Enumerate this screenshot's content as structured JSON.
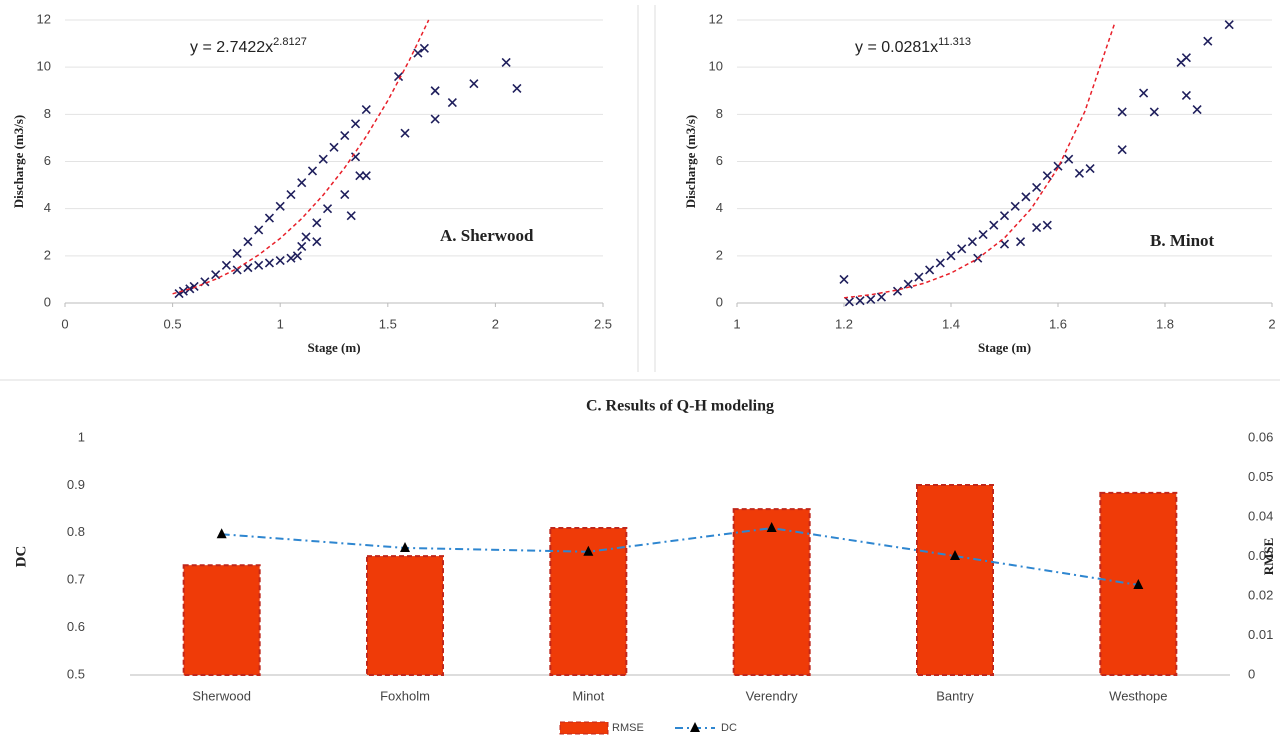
{
  "chart_data": [
    {
      "type": "scatter",
      "annotation": "A.  Sherwood",
      "equation": {
        "text": "y = 2.7422x",
        "exponent": "2.8127"
      },
      "xlabel": "Stage (m)",
      "ylabel": "Discharge (m3/s)",
      "xlim": [
        0,
        2.5
      ],
      "xticks": [
        0,
        0.5,
        1,
        1.5,
        2,
        2.5
      ],
      "ylim": [
        0,
        12
      ],
      "yticks": [
        0,
        2,
        4,
        6,
        8,
        10,
        12
      ],
      "grid": true,
      "series": [
        {
          "color": "#1f1f5c",
          "marker": "x",
          "x": [
            0.53,
            0.55,
            0.58,
            0.6,
            0.65,
            0.7,
            0.75,
            0.8,
            0.85,
            0.9,
            0.95,
            1.0,
            1.05,
            1.1,
            1.15,
            1.2,
            1.25,
            1.3,
            1.35,
            1.4,
            0.8,
            0.85,
            0.9,
            0.95,
            1.0,
            1.05,
            1.08,
            1.1,
            1.12,
            1.17,
            1.17,
            1.22,
            1.3,
            1.33,
            1.35,
            1.37,
            1.4,
            1.55,
            1.58,
            1.64,
            1.67,
            1.72,
            1.72,
            1.8,
            1.9,
            2.05,
            2.1
          ],
          "values": [
            0.4,
            0.5,
            0.6,
            0.7,
            0.9,
            1.2,
            1.6,
            2.1,
            2.6,
            3.1,
            3.6,
            4.1,
            4.6,
            5.1,
            5.6,
            6.1,
            6.6,
            7.1,
            7.6,
            8.2,
            1.4,
            1.5,
            1.6,
            1.7,
            1.8,
            1.9,
            2.0,
            2.4,
            2.8,
            2.6,
            3.4,
            4.0,
            4.6,
            3.7,
            6.2,
            5.4,
            5.4,
            9.6,
            7.2,
            10.6,
            10.8,
            7.8,
            9.0,
            8.5,
            9.3,
            10.2,
            9.1
          ]
        },
        {
          "color": "#e8202a",
          "line": "dashed",
          "x": [
            0.5,
            0.6,
            0.7,
            0.8,
            0.9,
            1.0,
            1.1,
            1.2,
            1.3,
            1.4,
            1.5,
            1.6,
            1.69
          ],
          "values": [
            0.39,
            0.65,
            1.01,
            1.46,
            2.04,
            2.74,
            3.58,
            4.58,
            5.74,
            7.07,
            8.58,
            10.29,
            12.0
          ]
        }
      ]
    },
    {
      "type": "scatter",
      "annotation": "B. Minot",
      "equation": {
        "text": "y = 0.0281x",
        "exponent": "11.313"
      },
      "xlabel": "Stage (m)",
      "ylabel": "Discharge (m3/s)",
      "xlim": [
        1,
        2
      ],
      "xticks": [
        1,
        1.2,
        1.4,
        1.6,
        1.8,
        2
      ],
      "ylim": [
        0,
        12
      ],
      "yticks": [
        0,
        2,
        4,
        6,
        8,
        10,
        12
      ],
      "grid": true,
      "series": [
        {
          "color": "#1f1f5c",
          "marker": "x",
          "x": [
            1.2,
            1.21,
            1.23,
            1.25,
            1.27,
            1.3,
            1.32,
            1.34,
            1.36,
            1.38,
            1.4,
            1.42,
            1.44,
            1.46,
            1.48,
            1.5,
            1.52,
            1.54,
            1.56,
            1.58,
            1.6,
            1.62,
            1.45,
            1.5,
            1.53,
            1.56,
            1.58,
            1.64,
            1.66,
            1.72,
            1.72,
            1.76,
            1.78,
            1.83,
            1.84,
            1.84,
            1.86,
            1.88,
            1.92
          ],
          "values": [
            1.0,
            0.05,
            0.1,
            0.15,
            0.25,
            0.5,
            0.8,
            1.1,
            1.4,
            1.7,
            2.0,
            2.3,
            2.6,
            2.9,
            3.3,
            3.7,
            4.1,
            4.5,
            4.9,
            5.4,
            5.8,
            6.1,
            1.9,
            2.5,
            2.6,
            3.2,
            3.3,
            5.5,
            5.7,
            8.1,
            6.5,
            8.9,
            8.1,
            10.2,
            10.4,
            8.8,
            8.2,
            11.1,
            11.8
          ]
        },
        {
          "color": "#e8202a",
          "line": "dashed",
          "x": [
            1.2,
            1.25,
            1.3,
            1.35,
            1.4,
            1.45,
            1.5,
            1.55,
            1.6,
            1.65,
            1.705
          ],
          "values": [
            0.22,
            0.35,
            0.55,
            0.84,
            1.27,
            1.88,
            2.76,
            4.0,
            5.73,
            8.11,
            11.8
          ]
        }
      ]
    },
    {
      "type": "bar",
      "title": "C. Results of Q-H modeling",
      "ylabel": "DC",
      "y2label": "RMSE",
      "categories": [
        "Sherwood",
        "Foxholm",
        "Minot",
        "Verendry",
        "Bantry",
        "Westhope"
      ],
      "ylim": [
        0.5,
        1
      ],
      "yticks": [
        0.5,
        0.6,
        0.7,
        0.8,
        0.9,
        1
      ],
      "y2lim": [
        0,
        0.06
      ],
      "y2ticks": [
        0,
        0.01,
        0.02,
        0.03,
        0.04,
        0.05,
        0.06
      ],
      "series": [
        {
          "name": "RMSE",
          "axis": "y2",
          "color": "#ef3b08",
          "values": [
            0.0278,
            0.0301,
            0.0372,
            0.042,
            0.0481,
            0.0461
          ]
        },
        {
          "name": "DC",
          "axis": "y",
          "kind": "line",
          "color": "#2e86d0",
          "values": [
            0.797,
            0.768,
            0.76,
            0.81,
            0.751,
            0.69
          ]
        }
      ]
    }
  ]
}
